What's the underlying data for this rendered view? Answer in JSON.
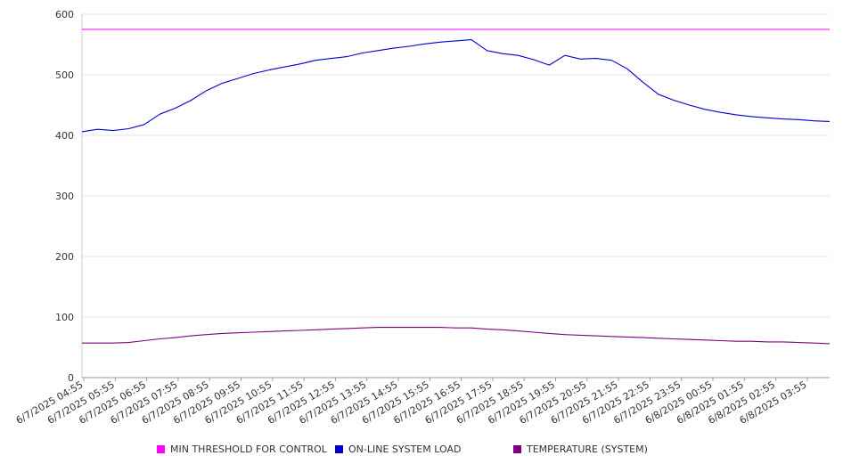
{
  "chart_data": {
    "type": "line",
    "title": "",
    "xlabel": "",
    "ylabel": "",
    "ylim": [
      0,
      600
    ],
    "yticks": [
      0,
      100,
      200,
      300,
      400,
      500,
      600
    ],
    "grid": true,
    "legend_position": "bottom",
    "xtick_labels": [
      "6/7/2025 04:55",
      "6/7/2025 05:55",
      "6/7/2025 06:55",
      "6/7/2025 07:55",
      "6/7/2025 08:55",
      "6/7/2025 09:55",
      "6/7/2025 10:55",
      "6/7/2025 11:55",
      "6/7/2025 12:55",
      "6/7/2025 13:55",
      "6/7/2025 14:55",
      "6/7/2025 15:55",
      "6/7/2025 16:55",
      "6/7/2025 17:55",
      "6/7/2025 18:55",
      "6/7/2025 19:55",
      "6/7/2025 20:55",
      "6/7/2025 21:55",
      "6/7/2025 22:55",
      "6/7/2025 23:55",
      "6/8/2025 00:55",
      "6/8/2025 01:55",
      "6/8/2025 02:55",
      "6/8/2025 03:55"
    ],
    "x": [
      "04:55",
      "05:25",
      "05:55",
      "06:25",
      "06:55",
      "07:25",
      "07:55",
      "08:25",
      "08:55",
      "09:25",
      "09:55",
      "10:25",
      "10:55",
      "11:25",
      "11:55",
      "12:25",
      "12:55",
      "13:25",
      "13:55",
      "14:25",
      "14:55",
      "15:25",
      "15:55",
      "16:25",
      "16:55",
      "17:25",
      "17:55",
      "18:25",
      "18:55",
      "19:25",
      "19:55",
      "20:25",
      "20:55",
      "21:25",
      "21:55",
      "22:25",
      "22:55",
      "23:25",
      "23:55",
      "00:25",
      "00:55",
      "01:25",
      "01:55",
      "02:25",
      "02:55",
      "03:25",
      "03:55",
      "04:25",
      "04:40"
    ],
    "series": [
      {
        "name": "MIN THRESHOLD FOR CONTROL",
        "color": "#ff00ff",
        "values": [
          575,
          575,
          575,
          575,
          575,
          575,
          575,
          575,
          575,
          575,
          575,
          575,
          575,
          575,
          575,
          575,
          575,
          575,
          575,
          575,
          575,
          575,
          575,
          575,
          575,
          575,
          575,
          575,
          575,
          575,
          575,
          575,
          575,
          575,
          575,
          575,
          575,
          575,
          575,
          575,
          575,
          575,
          575,
          575,
          575,
          575,
          575,
          575,
          575
        ]
      },
      {
        "name": "ON-LINE SYSTEM LOAD",
        "color": "#0000cc",
        "values": [
          406,
          410,
          408,
          411,
          418,
          435,
          445,
          458,
          474,
          486,
          494,
          502,
          508,
          513,
          518,
          524,
          527,
          530,
          536,
          540,
          544,
          547,
          551,
          554,
          556,
          558,
          540,
          535,
          532,
          525,
          516,
          532,
          526,
          527,
          524,
          510,
          488,
          468,
          458,
          450,
          443,
          438,
          434,
          431,
          429,
          427,
          426,
          424,
          423
        ]
      },
      {
        "name": "TEMPERATURE (SYSTEM)",
        "color": "#800080",
        "values": [
          57,
          57,
          57,
          58,
          61,
          64,
          66,
          69,
          71,
          73,
          74,
          75,
          76,
          77,
          78,
          79,
          80,
          81,
          82,
          83,
          83,
          83,
          83,
          83,
          82,
          82,
          80,
          79,
          77,
          75,
          73,
          71,
          70,
          69,
          68,
          67,
          66,
          65,
          64,
          63,
          62,
          61,
          60,
          60,
          59,
          59,
          58,
          57,
          56
        ]
      }
    ]
  }
}
